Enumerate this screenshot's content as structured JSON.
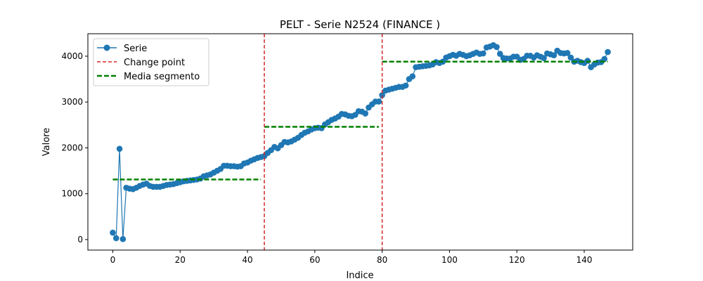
{
  "chart_data": {
    "type": "line",
    "title": "PELT - Serie N2524 (FINANCE     )",
    "xlabel": "Indice",
    "ylabel": "Valore",
    "xlim": [
      -7.4,
      154.4
    ],
    "ylim": [
      -230,
      4490
    ],
    "xticks": [
      0,
      20,
      40,
      60,
      80,
      100,
      120,
      140
    ],
    "yticks": [
      0,
      1000,
      2000,
      3000,
      4000
    ],
    "grid": false,
    "legend_position": "top-left",
    "series": [
      {
        "name": "Serie",
        "color": "#1f77b4",
        "x": [
          0,
          1,
          2,
          3,
          4,
          5,
          6,
          7,
          8,
          9,
          10,
          11,
          12,
          13,
          14,
          15,
          16,
          17,
          18,
          19,
          20,
          21,
          22,
          23,
          24,
          25,
          26,
          27,
          28,
          29,
          30,
          31,
          32,
          33,
          34,
          35,
          36,
          37,
          38,
          39,
          40,
          41,
          42,
          43,
          44,
          45,
          46,
          47,
          48,
          49,
          50,
          51,
          52,
          53,
          54,
          55,
          56,
          57,
          58,
          59,
          60,
          61,
          62,
          63,
          64,
          65,
          66,
          67,
          68,
          69,
          70,
          71,
          72,
          73,
          74,
          75,
          76,
          77,
          78,
          79,
          80,
          81,
          82,
          83,
          84,
          85,
          86,
          87,
          88,
          89,
          90,
          91,
          92,
          93,
          94,
          95,
          96,
          97,
          98,
          99,
          100,
          101,
          102,
          103,
          104,
          105,
          106,
          107,
          108,
          109,
          110,
          111,
          112,
          113,
          114,
          115,
          116,
          117,
          118,
          119,
          120,
          121,
          122,
          123,
          124,
          125,
          126,
          127,
          128,
          129,
          130,
          131,
          132,
          133,
          134,
          135,
          136,
          137,
          138,
          139,
          140,
          141,
          142,
          143,
          144,
          145,
          146,
          147
        ],
        "y": [
          150,
          30,
          1980,
          10,
          1130,
          1110,
          1100,
          1130,
          1170,
          1200,
          1220,
          1170,
          1150,
          1150,
          1150,
          1170,
          1190,
          1200,
          1210,
          1230,
          1250,
          1270,
          1280,
          1290,
          1300,
          1310,
          1330,
          1380,
          1400,
          1420,
          1460,
          1500,
          1540,
          1610,
          1610,
          1600,
          1600,
          1590,
          1600,
          1660,
          1680,
          1720,
          1750,
          1780,
          1800,
          1820,
          1890,
          1950,
          2020,
          1990,
          2060,
          2130,
          2120,
          2140,
          2180,
          2220,
          2280,
          2330,
          2360,
          2400,
          2430,
          2440,
          2430,
          2510,
          2560,
          2610,
          2640,
          2680,
          2740,
          2730,
          2700,
          2690,
          2720,
          2800,
          2790,
          2750,
          2880,
          2950,
          3010,
          3010,
          3150,
          3250,
          3270,
          3290,
          3310,
          3330,
          3330,
          3360,
          3500,
          3560,
          3760,
          3770,
          3780,
          3790,
          3800,
          3820,
          3870,
          3850,
          3880,
          3970,
          4000,
          4030,
          4010,
          4050,
          4030,
          4000,
          4020,
          4050,
          4080,
          4050,
          4060,
          4190,
          4210,
          4240,
          4200,
          4050,
          3960,
          3950,
          3950,
          3990,
          3990,
          3920,
          3940,
          4010,
          4010,
          3970,
          4020,
          3990,
          3960,
          4060,
          4040,
          4020,
          4120,
          4070,
          4060,
          4070,
          3970,
          3880,
          3900,
          3870,
          3850,
          3900,
          3760,
          3820,
          3860,
          3870,
          3940,
          4090
        ]
      }
    ],
    "change_points": {
      "name": "Change point",
      "color": "#d62728",
      "x": [
        45,
        80
      ]
    },
    "segment_means": {
      "name": "Media segmento",
      "color": "#008000",
      "segments": [
        {
          "x_start": 0,
          "x_end": 44,
          "value": 1310
        },
        {
          "x_start": 45,
          "x_end": 79,
          "value": 2460
        },
        {
          "x_start": 80,
          "x_end": 147,
          "value": 3880
        }
      ]
    }
  }
}
